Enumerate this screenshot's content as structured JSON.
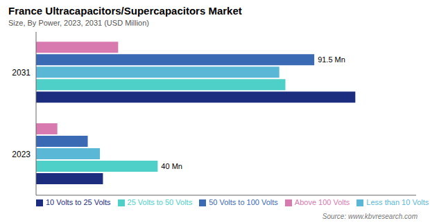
{
  "chart_data": {
    "type": "bar",
    "orientation": "horizontal",
    "title": "France Ultracapacitors/Supercapacitors  Market",
    "subtitle": "Size, By Power, 2023, 2031 (USD Million)",
    "source": "Source: www.kbvresearch.com",
    "categories": [
      "2031",
      "2023"
    ],
    "series": [
      {
        "name": "Above 100 Volts",
        "color": "#d87ab0",
        "values": [
          27,
          7
        ]
      },
      {
        "name": "50 Volts to 100 Volts",
        "color": "#3b6ab4",
        "values": [
          91.5,
          17
        ]
      },
      {
        "name": "Less than 10 Volts",
        "color": "#5ab8d6",
        "values": [
          80,
          21
        ]
      },
      {
        "name": "25 Volts to 50 Volts",
        "color": "#4ecfc8",
        "values": [
          82,
          40
        ]
      },
      {
        "name": "10 Volts to 25 Volts",
        "color": "#1c2d80",
        "values": [
          105,
          22
        ]
      }
    ],
    "annotations": [
      {
        "text": "91.5 Mn",
        "series": "50 Volts to 100 Volts",
        "category": "2031"
      },
      {
        "text": "40 Mn",
        "series": "25 Volts to 50 Volts",
        "category": "2023"
      }
    ],
    "xlim": [
      0,
      125
    ],
    "tick_labels": "y",
    "grid": false,
    "legend": "lower left"
  }
}
